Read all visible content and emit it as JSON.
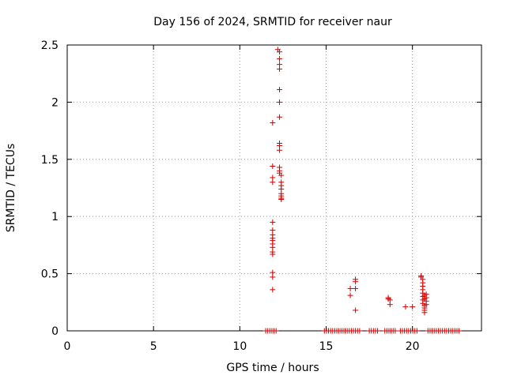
{
  "chart_data": {
    "type": "scatter",
    "title": "Day 156 of 2024, SRMTID for receiver naur",
    "xlabel": "GPS time / hours",
    "ylabel": "SRMTID / TECUs",
    "xlim": [
      0,
      24
    ],
    "ylim": [
      0,
      2.5
    ],
    "x_ticks": [
      0,
      5,
      10,
      15,
      20
    ],
    "x_tick_labels": [
      "0",
      "5",
      "10",
      "15",
      "20"
    ],
    "y_ticks": [
      0,
      0.5,
      1,
      1.5,
      2,
      2.5
    ],
    "y_tick_labels": [
      "0",
      "0.5",
      "1",
      "1.5",
      "2",
      "2.5"
    ],
    "grid": true,
    "marker": "plus",
    "color": "#d00000",
    "series": [
      {
        "x": [
          11.9,
          11.9,
          11.9,
          11.9,
          11.9,
          11.9,
          11.9,
          11.9,
          11.9,
          11.9,
          11.9,
          11.9,
          11.9,
          11.9,
          11.9,
          11.9,
          12.2,
          12.3,
          12.3,
          12.3,
          12.3,
          12.3,
          12.3,
          12.3,
          12.3,
          12.3,
          12.3,
          12.3,
          12.3,
          12.3,
          12.4,
          12.4,
          12.4,
          12.4,
          12.4,
          12.4,
          12.4,
          12.4,
          16.4,
          16.4,
          16.7,
          16.7,
          16.7,
          16.7,
          18.6,
          18.6,
          18.7,
          18.7,
          19.6,
          20.0,
          20.5,
          20.5,
          20.6,
          20.6,
          20.6,
          20.6,
          20.6,
          20.6,
          20.6,
          20.6,
          20.7,
          20.7,
          20.7,
          20.7,
          20.7,
          20.7,
          20.8,
          20.8,
          20.8,
          20.8
        ],
        "y": [
          0.95,
          0.88,
          0.84,
          0.81,
          0.79,
          0.76,
          0.73,
          0.69,
          0.67,
          0.51,
          0.47,
          0.36,
          1.82,
          1.44,
          1.34,
          1.3,
          2.46,
          2.44,
          2.38,
          2.33,
          2.29,
          2.11,
          2.0,
          1.87,
          1.64,
          1.62,
          1.58,
          1.43,
          1.4,
          1.38,
          1.36,
          1.3,
          1.27,
          1.24,
          1.2,
          1.18,
          1.16,
          1.15,
          0.37,
          0.31,
          0.45,
          0.43,
          0.37,
          0.18,
          0.29,
          0.28,
          0.27,
          0.23,
          0.21,
          0.21,
          0.48,
          0.47,
          0.45,
          0.42,
          0.39,
          0.36,
          0.33,
          0.3,
          0.27,
          0.24,
          0.22,
          0.2,
          0.18,
          0.16,
          0.31,
          0.28,
          0.32,
          0.29,
          0.26,
          0.23
        ]
      },
      {
        "x_ranges": [
          [
            11.5,
            12.1
          ],
          [
            14.9,
            17.0
          ],
          [
            17.5,
            18.0
          ],
          [
            18.4,
            19.0
          ],
          [
            19.3,
            20.3
          ],
          [
            20.9,
            22.7
          ]
        ],
        "y": 0
      }
    ]
  }
}
